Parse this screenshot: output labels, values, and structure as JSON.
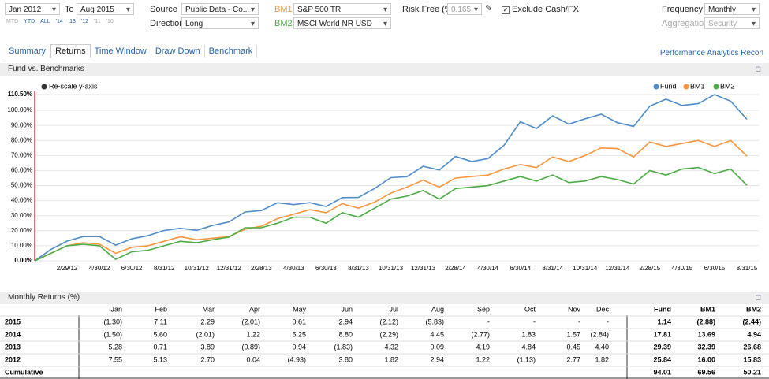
{
  "controls": {
    "start": "Jan 2012",
    "to_label": "To",
    "end": "Aug 2015",
    "quick_ranges": [
      "MTD",
      "YTD",
      "ALL",
      "'14",
      "'13",
      "'12",
      "'11",
      "'10"
    ],
    "source_label": "Source",
    "source": "Public Data - Co...",
    "direction_label": "Direction",
    "direction": "Long",
    "bm1_label": "BM1",
    "bm1": "S&P 500 TR",
    "bm2_label": "BM2",
    "bm2": "MSCI World NR USD",
    "risk_free_label": "Risk Free (%)",
    "risk_free": "0.165",
    "exclude_label": "Exclude Cash/FX",
    "frequency_label": "Frequency",
    "frequency": "Monthly",
    "aggregation_label": "Aggregation",
    "aggregation": "Security"
  },
  "tabs": [
    "Summary",
    "Returns",
    "Time Window",
    "Draw Down",
    "Benchmark"
  ],
  "app_link": "Performance Analytics Recon",
  "chart_panel": {
    "title": "Fund vs. Benchmarks",
    "rescale_label": "Re-scale y-axis"
  },
  "chart_data": {
    "type": "line",
    "categories": [
      null,
      null,
      "2/29/12",
      null,
      "4/30/12",
      null,
      "6/30/12",
      null,
      "8/31/12",
      null,
      "10/31/12",
      null,
      "12/31/12",
      null,
      "2/28/13",
      null,
      "4/30/13",
      null,
      "6/30/13",
      null,
      "8/31/13",
      null,
      "10/31/13",
      null,
      "12/31/13",
      null,
      "2/28/14",
      null,
      "4/30/14",
      null,
      "6/30/14",
      null,
      "8/31/14",
      null,
      "10/31/14",
      null,
      "12/31/14",
      null,
      "2/28/15",
      null,
      "4/30/15",
      null,
      "6/30/15",
      null,
      "8/31/15"
    ],
    "series": [
      {
        "name": "Fund",
        "color": "#4f8cc9",
        "values": [
          0,
          7.55,
          13.07,
          16.12,
          16.17,
          10.44,
          14.64,
          16.73,
          20.16,
          21.63,
          20.25,
          23.58,
          25.84,
          32.47,
          33.41,
          38.6,
          37.37,
          38.66,
          36.12,
          42.0,
          42.13,
          48.08,
          55.25,
          55.95,
          62.81,
          60.37,
          69.35,
          65.95,
          67.97,
          76.79,
          92.35,
          87.95,
          96.31,
          90.87,
          94.36,
          97.41,
          91.81,
          89.32,
          102.78,
          107.42,
          103.25,
          104.49,
          110.5,
          106.04,
          94.01
        ]
      },
      {
        "name": "BM1",
        "color": "#f7963e",
        "values": [
          0,
          5,
          10,
          12,
          11,
          5,
          9,
          10,
          13,
          16,
          14,
          15,
          16,
          21,
          23,
          28,
          31,
          34,
          32,
          38,
          35,
          39,
          45,
          49,
          53.6,
          49,
          55,
          56,
          57,
          61,
          64,
          62,
          69,
          66,
          70,
          75,
          74.6,
          69,
          79,
          76,
          78,
          80,
          76,
          80,
          69.6
        ]
      },
      {
        "name": "BM2",
        "color": "#4cab45",
        "values": [
          0,
          5,
          10,
          11,
          10,
          1,
          6,
          7,
          10,
          13,
          12,
          14,
          15.8,
          22,
          22,
          25,
          29,
          29,
          25,
          32,
          29,
          35,
          41,
          43,
          46.7,
          41,
          48,
          49,
          50,
          53,
          56,
          53,
          57,
          52,
          53,
          56,
          54,
          51,
          60,
          57,
          61,
          62,
          58,
          61,
          50.2
        ]
      }
    ],
    "ylim": [
      0,
      110.5
    ],
    "yticks": [
      {
        "value": 0,
        "label": "0.00%"
      },
      {
        "value": 10,
        "label": "10.00%"
      },
      {
        "value": 20,
        "label": "20.00%"
      },
      {
        "value": 30,
        "label": "30.00%"
      },
      {
        "value": 40,
        "label": "40.00%"
      },
      {
        "value": 50,
        "label": "50.00%"
      },
      {
        "value": 60,
        "label": "60.00%"
      },
      {
        "value": 70,
        "label": "70.00%"
      },
      {
        "value": 80,
        "label": "80.00%"
      },
      {
        "value": 90,
        "label": "90.00%"
      },
      {
        "value": 100,
        "label": "100.00%"
      },
      {
        "value": 110.5,
        "label": "110.50%"
      }
    ],
    "grid": true,
    "legend": "top-right"
  },
  "table_panel": {
    "title": "Monthly Returns (%)"
  },
  "table": {
    "header": [
      "Jan",
      "Feb",
      "Mar",
      "Apr",
      "May",
      "Jun",
      "Jul",
      "Aug",
      "Sep",
      "Oct",
      "Nov",
      "Dec",
      "Fund",
      "BM1",
      "BM2"
    ],
    "rows": [
      {
        "label": "2015",
        "cells": [
          "(1.30)",
          "7.11",
          "2.29",
          "(2.01)",
          "0.61",
          "2.94",
          "(2.12)",
          "(5.83)",
          "-",
          "-",
          "-",
          "-",
          "1.14",
          "(2.88)",
          "(2.44)"
        ]
      },
      {
        "label": "2014",
        "cells": [
          "(1.50)",
          "5.60",
          "(2.01)",
          "1.22",
          "5.25",
          "8.80",
          "(2.29)",
          "4.45",
          "(2.77)",
          "1.83",
          "1.57",
          "(2.84)",
          "17.81",
          "13.69",
          "4.94"
        ]
      },
      {
        "label": "2013",
        "cells": [
          "5.28",
          "0.71",
          "3.89",
          "(0.89)",
          "0.94",
          "(1.83)",
          "4.32",
          "0.09",
          "4.19",
          "4.84",
          "0.45",
          "4.40",
          "29.39",
          "32.39",
          "26.68"
        ]
      },
      {
        "label": "2012",
        "cells": [
          "7.55",
          "5.13",
          "2.70",
          "0.04",
          "(4.93)",
          "3.80",
          "1.82",
          "2.94",
          "1.22",
          "(1.13)",
          "2.77",
          "1.82",
          "25.84",
          "16.00",
          "15.83"
        ]
      },
      {
        "label": "Cumulative",
        "total_cells": [
          "94.01",
          "69.56",
          "50.21"
        ]
      }
    ]
  }
}
